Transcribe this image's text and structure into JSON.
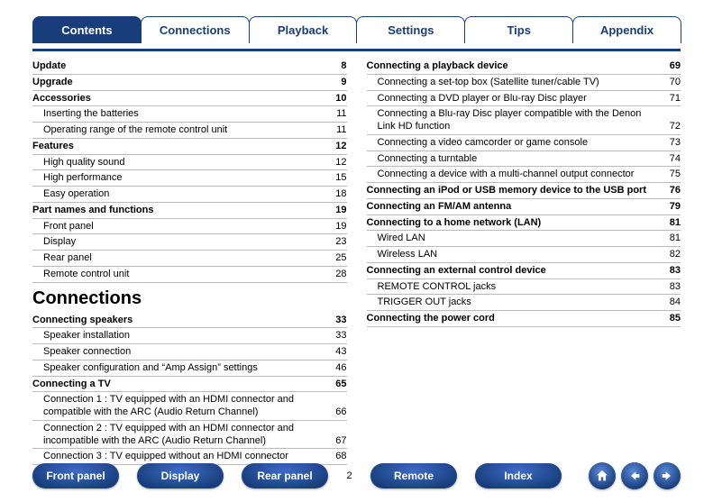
{
  "colors": {
    "brand": "#173d7a",
    "rule": "#bbbbbb",
    "bg": "#ffffff"
  },
  "tabs": [
    {
      "id": "contents",
      "label": "Contents",
      "active": true
    },
    {
      "id": "connections",
      "label": "Connections",
      "active": false
    },
    {
      "id": "playback",
      "label": "Playback",
      "active": false
    },
    {
      "id": "settings",
      "label": "Settings",
      "active": false
    },
    {
      "id": "tips",
      "label": "Tips",
      "active": false
    },
    {
      "id": "appendix",
      "label": "Appendix",
      "active": false
    }
  ],
  "left": [
    {
      "label": "Update",
      "page": "8",
      "bold": true
    },
    {
      "label": "Upgrade",
      "page": "9",
      "bold": true
    },
    {
      "label": "Accessories",
      "page": "10",
      "bold": true
    },
    {
      "label": "Inserting the batteries",
      "page": "11",
      "sub": true
    },
    {
      "label": "Operating range of the remote control unit",
      "page": "11",
      "sub": true
    },
    {
      "label": "Features",
      "page": "12",
      "bold": true
    },
    {
      "label": "High quality sound",
      "page": "12",
      "sub": true
    },
    {
      "label": "High performance",
      "page": "15",
      "sub": true
    },
    {
      "label": "Easy operation",
      "page": "18",
      "sub": true
    },
    {
      "label": "Part names and functions",
      "page": "19",
      "bold": true
    },
    {
      "label": "Front panel",
      "page": "19",
      "sub": true
    },
    {
      "label": "Display",
      "page": "23",
      "sub": true
    },
    {
      "label": "Rear panel",
      "page": "25",
      "sub": true
    },
    {
      "label": "Remote control unit",
      "page": "28",
      "sub": true
    }
  ],
  "section_title": "Connections",
  "left2": [
    {
      "label": "Connecting speakers",
      "page": "33",
      "bold": true
    },
    {
      "label": "Speaker installation",
      "page": "33",
      "sub": true
    },
    {
      "label": "Speaker connection",
      "page": "43",
      "sub": true
    },
    {
      "label": "Speaker configuration and “Amp Assign” settings",
      "page": "46",
      "sub": true
    },
    {
      "label": "Connecting a TV",
      "page": "65",
      "bold": true
    },
    {
      "label": "Connection 1 : TV equipped with an HDMI connector and compatible with the ARC (Audio Return Channel)",
      "page": "66",
      "sub": true
    },
    {
      "label": "Connection 2 : TV equipped with an HDMI connector and incompatible with the ARC (Audio Return Channel)",
      "page": "67",
      "sub": true
    },
    {
      "label": "Connection 3 : TV equipped without an HDMI connector",
      "page": "68",
      "sub": true
    }
  ],
  "right": [
    {
      "label": "Connecting a playback device",
      "page": "69",
      "bold": true
    },
    {
      "label": "Connecting a set-top box (Satellite tuner/cable TV)",
      "page": "70",
      "sub": true
    },
    {
      "label": "Connecting a DVD player or Blu-ray Disc player",
      "page": "71",
      "sub": true
    },
    {
      "label": "Connecting a Blu-ray Disc player compatible with the Denon Link HD function",
      "page": "72",
      "sub": true
    },
    {
      "label": "Connecting a video camcorder or game console",
      "page": "73",
      "sub": true
    },
    {
      "label": "Connecting a turntable",
      "page": "74",
      "sub": true
    },
    {
      "label": "Connecting a device with a multi-channel output connector",
      "page": "75",
      "sub": true
    },
    {
      "label": "Connecting an iPod or USB memory device to the USB port",
      "page": "76",
      "bold": true
    },
    {
      "label": "Connecting an FM/AM antenna",
      "page": "79",
      "bold": true
    },
    {
      "label": "Connecting to a home network (LAN)",
      "page": "81",
      "bold": true
    },
    {
      "label": "Wired LAN",
      "page": "81",
      "sub": true
    },
    {
      "label": "Wireless LAN",
      "page": "82",
      "sub": true
    },
    {
      "label": "Connecting an external control device",
      "page": "83",
      "bold": true
    },
    {
      "label": "REMOTE CONTROL jacks",
      "page": "83",
      "sub": true
    },
    {
      "label": "TRIGGER OUT jacks",
      "page": "84",
      "sub": true
    },
    {
      "label": "Connecting the power cord",
      "page": "85",
      "bold": true
    }
  ],
  "footer": {
    "buttons": [
      {
        "id": "front-panel",
        "label": "Front panel"
      },
      {
        "id": "display",
        "label": "Display"
      },
      {
        "id": "rear-panel",
        "label": "Rear panel"
      }
    ],
    "page_number": "2",
    "buttons2": [
      {
        "id": "remote",
        "label": "Remote"
      },
      {
        "id": "index",
        "label": "Index"
      }
    ],
    "nav": {
      "home": "home",
      "back": "back",
      "forward": "forward"
    }
  }
}
